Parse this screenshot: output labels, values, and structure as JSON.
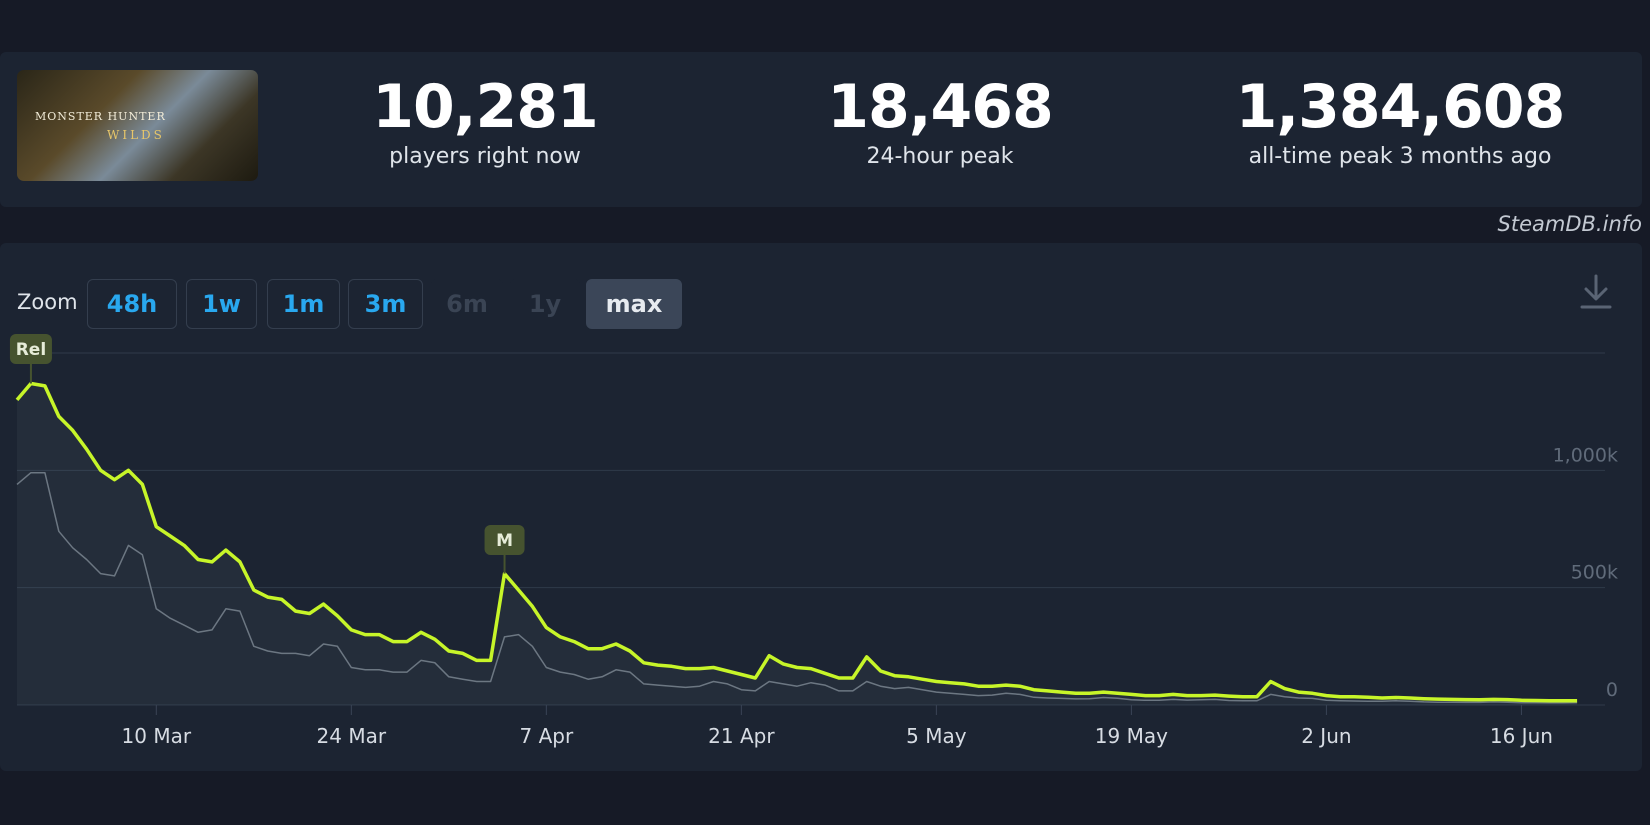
{
  "header": {
    "thumbnail_title": "MONSTER HUNTER",
    "thumbnail_subtitle": "WILDS",
    "current_players": "10,281",
    "current_label": "players right now",
    "peak_24h": "18,468",
    "peak_24h_label": "24-hour peak",
    "all_time_peak": "1,384,608",
    "all_time_label": "all-time peak 3 months ago"
  },
  "watermark": "SteamDB.info",
  "zoom": {
    "label": "Zoom",
    "options": [
      "48h",
      "1w",
      "1m",
      "3m",
      "6m",
      "1y",
      "max"
    ],
    "active": "max",
    "disabled": [
      "6m",
      "1y"
    ]
  },
  "download_icon": "download-icon",
  "colors": {
    "players_line": "#c7f529",
    "secondary_line": "#6d7682",
    "marker_bg": "#46532f",
    "accent": "#29a8ef"
  },
  "chart_data": {
    "type": "line",
    "x_start": "2025-02-28",
    "x_end": "2025-06-22",
    "x_tick_labels": [
      "10 Mar",
      "24 Mar",
      "7 Apr",
      "21 Apr",
      "5 May",
      "19 May",
      "2 Jun",
      "16 Jun"
    ],
    "x_tick_dates": [
      "2025-03-10",
      "2025-03-24",
      "2025-04-07",
      "2025-04-21",
      "2025-05-05",
      "2025-05-19",
      "2025-06-02",
      "2025-06-16"
    ],
    "y_tick_labels": [
      "0",
      "500k",
      "1,000k"
    ],
    "y_tick_values": [
      0,
      500000,
      1000000
    ],
    "ylim": [
      0,
      1500000
    ],
    "grid": true,
    "markers": [
      {
        "label": "Rel",
        "date": "2025-03-01"
      },
      {
        "label": "M",
        "date": "2025-04-04"
      }
    ],
    "series": [
      {
        "color": "#c7f529",
        "points": [
          [
            "2025-02-28",
            1300000
          ],
          [
            "2025-03-01",
            1370000
          ],
          [
            "2025-03-02",
            1360000
          ],
          [
            "2025-03-03",
            1230000
          ],
          [
            "2025-03-04",
            1170000
          ],
          [
            "2025-03-05",
            1090000
          ],
          [
            "2025-03-06",
            1000000
          ],
          [
            "2025-03-07",
            960000
          ],
          [
            "2025-03-08",
            1000000
          ],
          [
            "2025-03-09",
            940000
          ],
          [
            "2025-03-10",
            760000
          ],
          [
            "2025-03-11",
            720000
          ],
          [
            "2025-03-12",
            680000
          ],
          [
            "2025-03-13",
            620000
          ],
          [
            "2025-03-14",
            610000
          ],
          [
            "2025-03-15",
            660000
          ],
          [
            "2025-03-16",
            610000
          ],
          [
            "2025-03-17",
            490000
          ],
          [
            "2025-03-18",
            460000
          ],
          [
            "2025-03-19",
            450000
          ],
          [
            "2025-03-20",
            400000
          ],
          [
            "2025-03-21",
            390000
          ],
          [
            "2025-03-22",
            430000
          ],
          [
            "2025-03-23",
            380000
          ],
          [
            "2025-03-24",
            320000
          ],
          [
            "2025-03-25",
            300000
          ],
          [
            "2025-03-26",
            300000
          ],
          [
            "2025-03-27",
            270000
          ],
          [
            "2025-03-28",
            270000
          ],
          [
            "2025-03-29",
            310000
          ],
          [
            "2025-03-30",
            280000
          ],
          [
            "2025-03-31",
            230000
          ],
          [
            "2025-04-01",
            220000
          ],
          [
            "2025-04-02",
            190000
          ],
          [
            "2025-04-03",
            190000
          ],
          [
            "2025-04-04",
            560000
          ],
          [
            "2025-04-05",
            490000
          ],
          [
            "2025-04-06",
            420000
          ],
          [
            "2025-04-07",
            330000
          ],
          [
            "2025-04-08",
            290000
          ],
          [
            "2025-04-09",
            270000
          ],
          [
            "2025-04-10",
            240000
          ],
          [
            "2025-04-11",
            240000
          ],
          [
            "2025-04-12",
            260000
          ],
          [
            "2025-04-13",
            230000
          ],
          [
            "2025-04-14",
            180000
          ],
          [
            "2025-04-15",
            170000
          ],
          [
            "2025-04-16",
            165000
          ],
          [
            "2025-04-17",
            155000
          ],
          [
            "2025-04-18",
            155000
          ],
          [
            "2025-04-19",
            160000
          ],
          [
            "2025-04-20",
            145000
          ],
          [
            "2025-04-21",
            130000
          ],
          [
            "2025-04-22",
            115000
          ],
          [
            "2025-04-23",
            210000
          ],
          [
            "2025-04-24",
            175000
          ],
          [
            "2025-04-25",
            160000
          ],
          [
            "2025-04-26",
            155000
          ],
          [
            "2025-04-27",
            135000
          ],
          [
            "2025-04-28",
            115000
          ],
          [
            "2025-04-29",
            115000
          ],
          [
            "2025-04-30",
            205000
          ],
          [
            "2025-05-01",
            145000
          ],
          [
            "2025-05-02",
            125000
          ],
          [
            "2025-05-03",
            120000
          ],
          [
            "2025-05-04",
            110000
          ],
          [
            "2025-05-05",
            100000
          ],
          [
            "2025-05-06",
            95000
          ],
          [
            "2025-05-07",
            90000
          ],
          [
            "2025-05-08",
            80000
          ],
          [
            "2025-05-09",
            80000
          ],
          [
            "2025-05-10",
            85000
          ],
          [
            "2025-05-11",
            80000
          ],
          [
            "2025-05-12",
            65000
          ],
          [
            "2025-05-13",
            60000
          ],
          [
            "2025-05-14",
            55000
          ],
          [
            "2025-05-15",
            50000
          ],
          [
            "2025-05-16",
            50000
          ],
          [
            "2025-05-17",
            55000
          ],
          [
            "2025-05-18",
            50000
          ],
          [
            "2025-05-19",
            45000
          ],
          [
            "2025-05-20",
            40000
          ],
          [
            "2025-05-21",
            40000
          ],
          [
            "2025-05-22",
            45000
          ],
          [
            "2025-05-23",
            40000
          ],
          [
            "2025-05-24",
            40000
          ],
          [
            "2025-05-25",
            42000
          ],
          [
            "2025-05-26",
            38000
          ],
          [
            "2025-05-27",
            35000
          ],
          [
            "2025-05-28",
            35000
          ],
          [
            "2025-05-29",
            100000
          ],
          [
            "2025-05-30",
            70000
          ],
          [
            "2025-05-31",
            55000
          ],
          [
            "2025-06-01",
            50000
          ],
          [
            "2025-06-02",
            40000
          ],
          [
            "2025-06-03",
            35000
          ],
          [
            "2025-06-04",
            35000
          ],
          [
            "2025-06-05",
            33000
          ],
          [
            "2025-06-06",
            30000
          ],
          [
            "2025-06-07",
            32000
          ],
          [
            "2025-06-08",
            30000
          ],
          [
            "2025-06-09",
            27000
          ],
          [
            "2025-06-10",
            25000
          ],
          [
            "2025-06-11",
            24000
          ],
          [
            "2025-06-12",
            23000
          ],
          [
            "2025-06-13",
            22000
          ],
          [
            "2025-06-14",
            24000
          ],
          [
            "2025-06-15",
            23000
          ],
          [
            "2025-06-16",
            20000
          ],
          [
            "2025-06-17",
            19000
          ],
          [
            "2025-06-18",
            18000
          ],
          [
            "2025-06-19",
            18000
          ],
          [
            "2025-06-20",
            18468
          ]
        ]
      },
      {
        "color": "#6d7682",
        "points": [
          [
            "2025-02-28",
            940000
          ],
          [
            "2025-03-01",
            990000
          ],
          [
            "2025-03-02",
            990000
          ],
          [
            "2025-03-03",
            740000
          ],
          [
            "2025-03-04",
            670000
          ],
          [
            "2025-03-05",
            620000
          ],
          [
            "2025-03-06",
            560000
          ],
          [
            "2025-03-07",
            550000
          ],
          [
            "2025-03-08",
            680000
          ],
          [
            "2025-03-09",
            640000
          ],
          [
            "2025-03-10",
            410000
          ],
          [
            "2025-03-11",
            370000
          ],
          [
            "2025-03-12",
            340000
          ],
          [
            "2025-03-13",
            310000
          ],
          [
            "2025-03-14",
            320000
          ],
          [
            "2025-03-15",
            410000
          ],
          [
            "2025-03-16",
            400000
          ],
          [
            "2025-03-17",
            250000
          ],
          [
            "2025-03-18",
            230000
          ],
          [
            "2025-03-19",
            220000
          ],
          [
            "2025-03-20",
            220000
          ],
          [
            "2025-03-21",
            210000
          ],
          [
            "2025-03-22",
            260000
          ],
          [
            "2025-03-23",
            250000
          ],
          [
            "2025-03-24",
            160000
          ],
          [
            "2025-03-25",
            150000
          ],
          [
            "2025-03-26",
            150000
          ],
          [
            "2025-03-27",
            140000
          ],
          [
            "2025-03-28",
            140000
          ],
          [
            "2025-03-29",
            190000
          ],
          [
            "2025-03-30",
            180000
          ],
          [
            "2025-03-31",
            120000
          ],
          [
            "2025-04-01",
            110000
          ],
          [
            "2025-04-02",
            100000
          ],
          [
            "2025-04-03",
            100000
          ],
          [
            "2025-04-04",
            290000
          ],
          [
            "2025-04-05",
            300000
          ],
          [
            "2025-04-06",
            250000
          ],
          [
            "2025-04-07",
            160000
          ],
          [
            "2025-04-08",
            140000
          ],
          [
            "2025-04-09",
            130000
          ],
          [
            "2025-04-10",
            110000
          ],
          [
            "2025-04-11",
            120000
          ],
          [
            "2025-04-12",
            150000
          ],
          [
            "2025-04-13",
            140000
          ],
          [
            "2025-04-14",
            90000
          ],
          [
            "2025-04-15",
            85000
          ],
          [
            "2025-04-16",
            80000
          ],
          [
            "2025-04-17",
            75000
          ],
          [
            "2025-04-18",
            80000
          ],
          [
            "2025-04-19",
            100000
          ],
          [
            "2025-04-20",
            90000
          ],
          [
            "2025-04-21",
            65000
          ],
          [
            "2025-04-22",
            60000
          ],
          [
            "2025-04-23",
            100000
          ],
          [
            "2025-04-24",
            90000
          ],
          [
            "2025-04-25",
            80000
          ],
          [
            "2025-04-26",
            95000
          ],
          [
            "2025-04-27",
            85000
          ],
          [
            "2025-04-28",
            60000
          ],
          [
            "2025-04-29",
            60000
          ],
          [
            "2025-04-30",
            100000
          ],
          [
            "2025-05-01",
            80000
          ],
          [
            "2025-05-02",
            70000
          ],
          [
            "2025-05-03",
            75000
          ],
          [
            "2025-05-04",
            65000
          ],
          [
            "2025-05-05",
            55000
          ],
          [
            "2025-05-06",
            50000
          ],
          [
            "2025-05-07",
            45000
          ],
          [
            "2025-05-08",
            40000
          ],
          [
            "2025-05-09",
            42000
          ],
          [
            "2025-05-10",
            50000
          ],
          [
            "2025-05-11",
            45000
          ],
          [
            "2025-05-12",
            33000
          ],
          [
            "2025-05-13",
            30000
          ],
          [
            "2025-05-14",
            28000
          ],
          [
            "2025-05-15",
            26000
          ],
          [
            "2025-05-16",
            27000
          ],
          [
            "2025-05-17",
            32000
          ],
          [
            "2025-05-18",
            29000
          ],
          [
            "2025-05-19",
            22000
          ],
          [
            "2025-05-20",
            20000
          ],
          [
            "2025-05-21",
            20000
          ],
          [
            "2025-05-22",
            24000
          ],
          [
            "2025-05-23",
            21000
          ],
          [
            "2025-05-24",
            22000
          ],
          [
            "2025-05-25",
            24000
          ],
          [
            "2025-05-26",
            19000
          ],
          [
            "2025-05-27",
            18000
          ],
          [
            "2025-05-28",
            18000
          ],
          [
            "2025-05-29",
            45000
          ],
          [
            "2025-05-30",
            35000
          ],
          [
            "2025-05-31",
            30000
          ],
          [
            "2025-06-01",
            28000
          ],
          [
            "2025-06-02",
            20000
          ],
          [
            "2025-06-03",
            18000
          ],
          [
            "2025-06-04",
            17000
          ],
          [
            "2025-06-05",
            16000
          ],
          [
            "2025-06-06",
            16000
          ],
          [
            "2025-06-07",
            18000
          ],
          [
            "2025-06-08",
            16000
          ],
          [
            "2025-06-09",
            13000
          ],
          [
            "2025-06-10",
            12000
          ],
          [
            "2025-06-11",
            12000
          ],
          [
            "2025-06-12",
            11000
          ],
          [
            "2025-06-13",
            11000
          ],
          [
            "2025-06-14",
            13000
          ],
          [
            "2025-06-15",
            12000
          ],
          [
            "2025-06-16",
            10000
          ],
          [
            "2025-06-17",
            10000
          ],
          [
            "2025-06-18",
            9000
          ],
          [
            "2025-06-19",
            9000
          ],
          [
            "2025-06-20",
            10281
          ]
        ]
      }
    ]
  }
}
